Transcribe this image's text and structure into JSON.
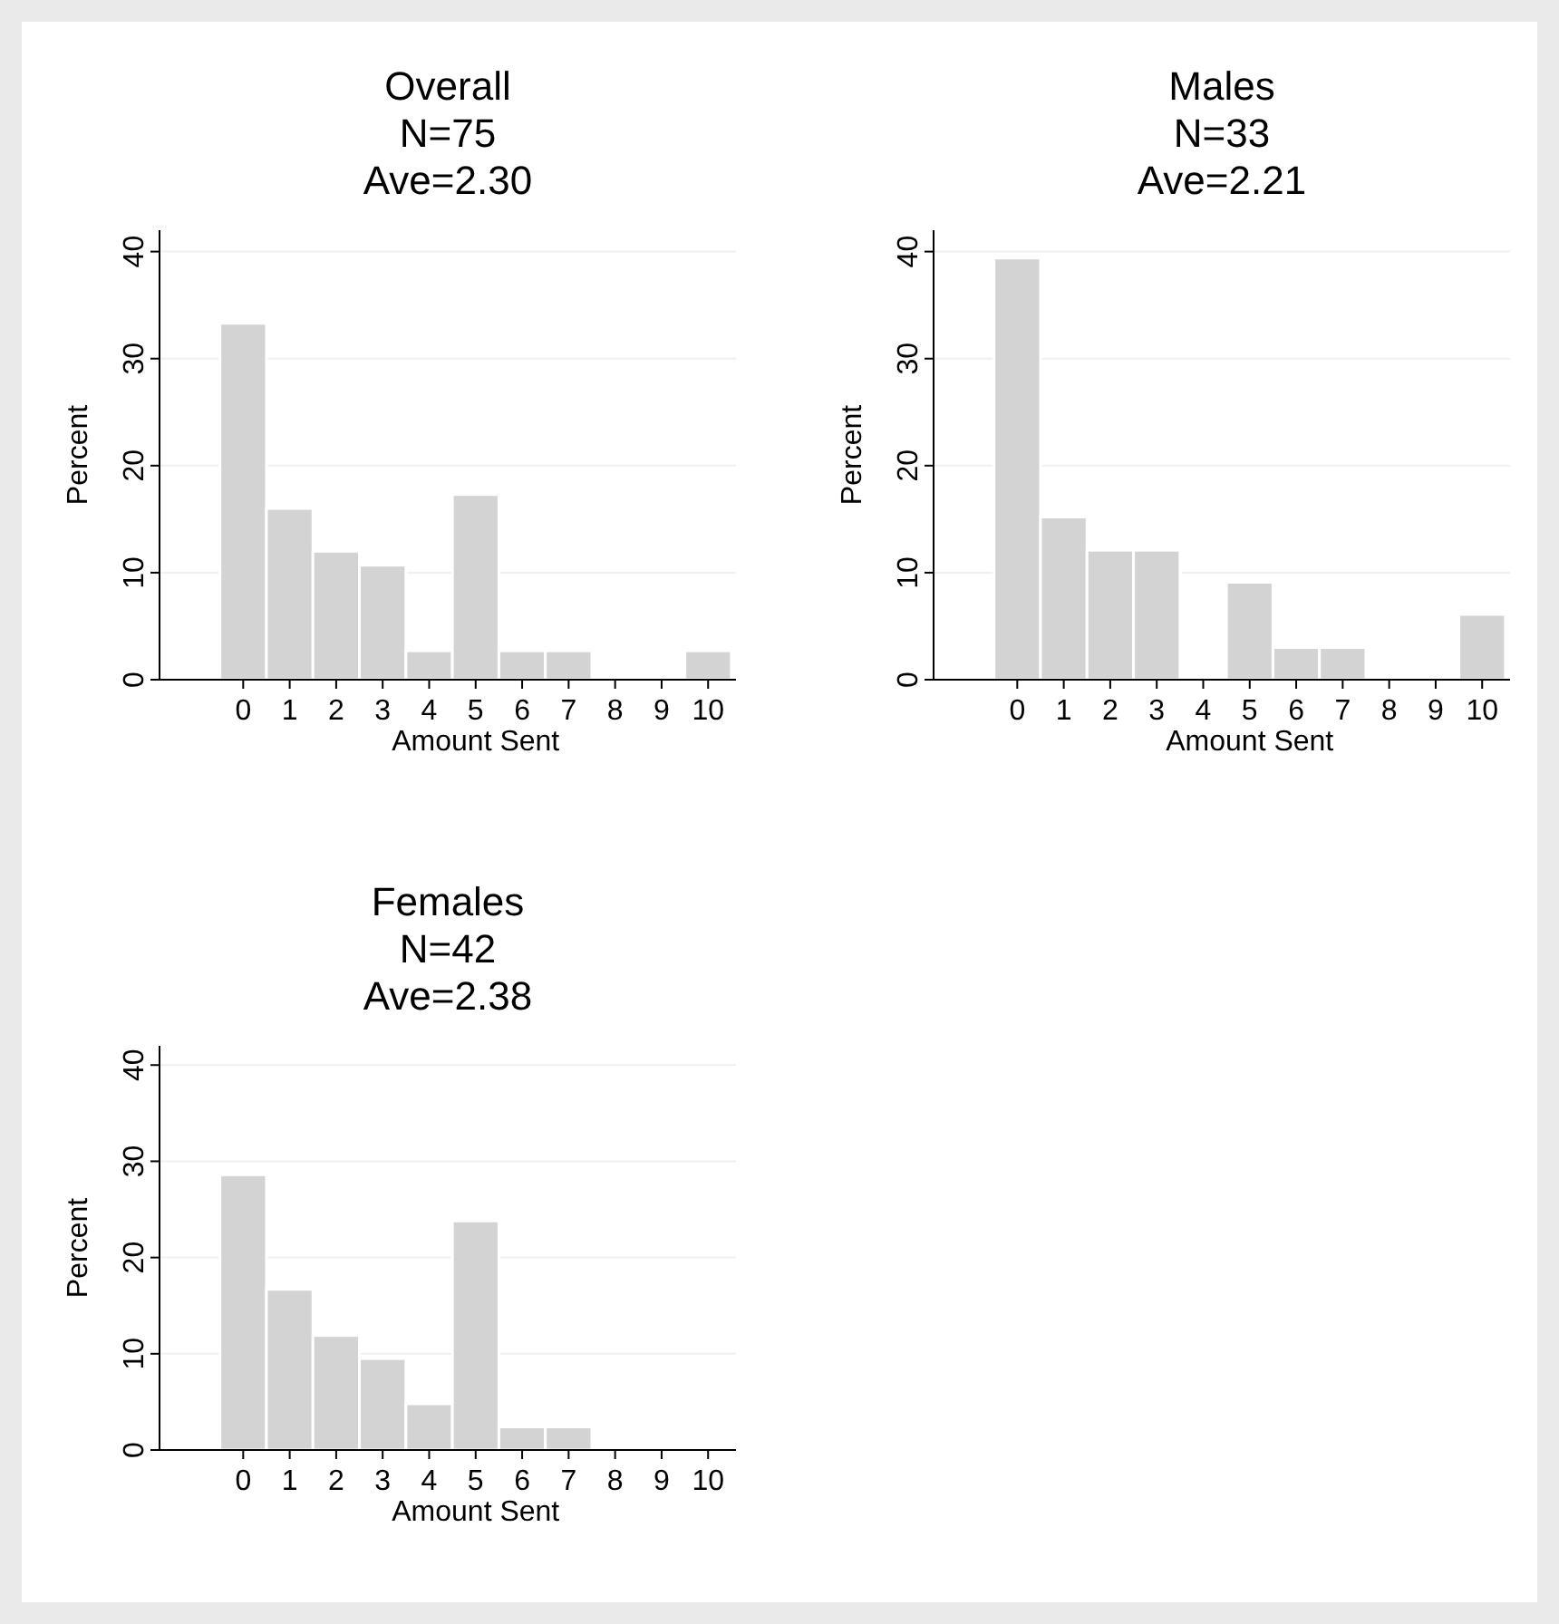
{
  "chart_data": [
    {
      "type": "histogram",
      "title": "Overall",
      "subtitle": "N=75\nAve=2.30",
      "xlabel": "Amount Sent",
      "ylabel": "Percent",
      "bins": [
        -0.5,
        0.5,
        1.5,
        2.5,
        3.5,
        4.5,
        5.5,
        6.5,
        7.5,
        8.5,
        9.5,
        10.5
      ],
      "values": [
        33.3,
        16.0,
        12.0,
        10.7,
        2.7,
        17.3,
        2.7,
        2.7,
        0,
        0,
        2.7
      ],
      "color": "#d3d3d3",
      "xlim": [
        -1.8,
        10.6
      ],
      "xticks": [
        0,
        1,
        2,
        3,
        4,
        5,
        6,
        7,
        8,
        9,
        10
      ],
      "ylim": [
        0,
        42
      ],
      "yticks": [
        0,
        10,
        20,
        30,
        40
      ],
      "grid": "y"
    },
    {
      "type": "histogram",
      "title": "Males",
      "subtitle": "N=33\nAve=2.21",
      "xlabel": "Amount Sent",
      "ylabel": "Percent",
      "bins": [
        -0.5,
        0.5,
        1.5,
        2.5,
        3.5,
        4.5,
        5.5,
        6.5,
        7.5,
        8.5,
        9.5,
        10.5
      ],
      "values": [
        39.4,
        15.2,
        12.1,
        12.1,
        0,
        9.1,
        3.0,
        3.0,
        0,
        0,
        6.1
      ],
      "color": "#d3d3d3",
      "xlim": [
        -1.8,
        10.6
      ],
      "xticks": [
        0,
        1,
        2,
        3,
        4,
        5,
        6,
        7,
        8,
        9,
        10
      ],
      "ylim": [
        0,
        42
      ],
      "yticks": [
        0,
        10,
        20,
        30,
        40
      ],
      "grid": "y"
    },
    {
      "type": "histogram",
      "title": "Females",
      "subtitle": "N=42\nAve=2.38",
      "xlabel": "Amount Sent",
      "ylabel": "Percent",
      "bins": [
        -0.5,
        0.5,
        1.5,
        2.5,
        3.5,
        4.5,
        5.5,
        6.5,
        7.5,
        8.5,
        9.5,
        10.5
      ],
      "values": [
        28.6,
        16.7,
        11.9,
        9.5,
        4.8,
        23.8,
        2.4,
        2.4,
        0,
        0,
        0
      ],
      "color": "#d3d3d3",
      "xlim": [
        -1.8,
        10.6
      ],
      "xticks": [
        0,
        1,
        2,
        3,
        4,
        5,
        6,
        7,
        8,
        9,
        10
      ],
      "ylim": [
        0,
        42
      ],
      "yticks": [
        0,
        10,
        20,
        30,
        40
      ],
      "grid": "y"
    }
  ]
}
